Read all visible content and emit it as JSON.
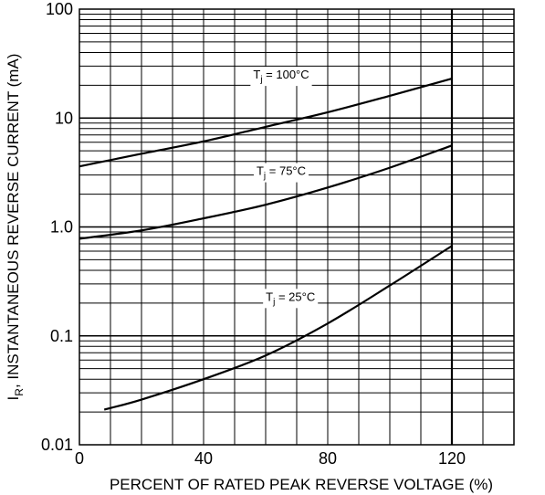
{
  "chart_data": {
    "type": "line",
    "title": "",
    "xlabel": "PERCENT OF RATED PEAK REVERSE VOLTAGE (%)",
    "ylabel_main": "I",
    "ylabel_sub": "R",
    "ylabel_rest": ", INSTANTANEOUS REVERSE CURRENT (mA)",
    "x_scale": "linear",
    "y_scale": "log",
    "xlim": [
      0,
      140
    ],
    "ylim": [
      0.01,
      100
    ],
    "grid": true,
    "x_ticks": [
      {
        "value": 0,
        "label": "0"
      },
      {
        "value": 40,
        "label": "40"
      },
      {
        "value": 80,
        "label": "80"
      },
      {
        "value": 120,
        "label": "120"
      }
    ],
    "y_ticks": [
      {
        "value": 100,
        "label": "100"
      },
      {
        "value": 10,
        "label": "10"
      },
      {
        "value": 1,
        "label": "1.0"
      },
      {
        "value": 0.1,
        "label": "0.1"
      },
      {
        "value": 0.01,
        "label": "0.01"
      }
    ],
    "limit_line_x": 120,
    "series": [
      {
        "name_main": "T",
        "name_sub": "j",
        "name_rest": " = 100°C",
        "label_pos": [
          65,
          23
        ],
        "x": [
          0,
          20,
          40,
          60,
          80,
          100,
          120
        ],
        "y": [
          3.6,
          4.7,
          6.1,
          8.3,
          11.3,
          16,
          23
        ]
      },
      {
        "name_main": "T",
        "name_sub": "j",
        "name_rest": " = 75°C",
        "label_pos": [
          65,
          3
        ],
        "x": [
          0,
          20,
          40,
          60,
          80,
          100,
          120
        ],
        "y": [
          0.78,
          0.93,
          1.2,
          1.6,
          2.3,
          3.5,
          5.6
        ]
      },
      {
        "name_main": "T",
        "name_sub": "j",
        "name_rest": " = 25°C",
        "label_pos": [
          68,
          0.21
        ],
        "x": [
          8,
          20,
          40,
          60,
          80,
          100,
          120
        ],
        "y": [
          0.021,
          0.026,
          0.04,
          0.066,
          0.13,
          0.29,
          0.67
        ]
      }
    ]
  }
}
